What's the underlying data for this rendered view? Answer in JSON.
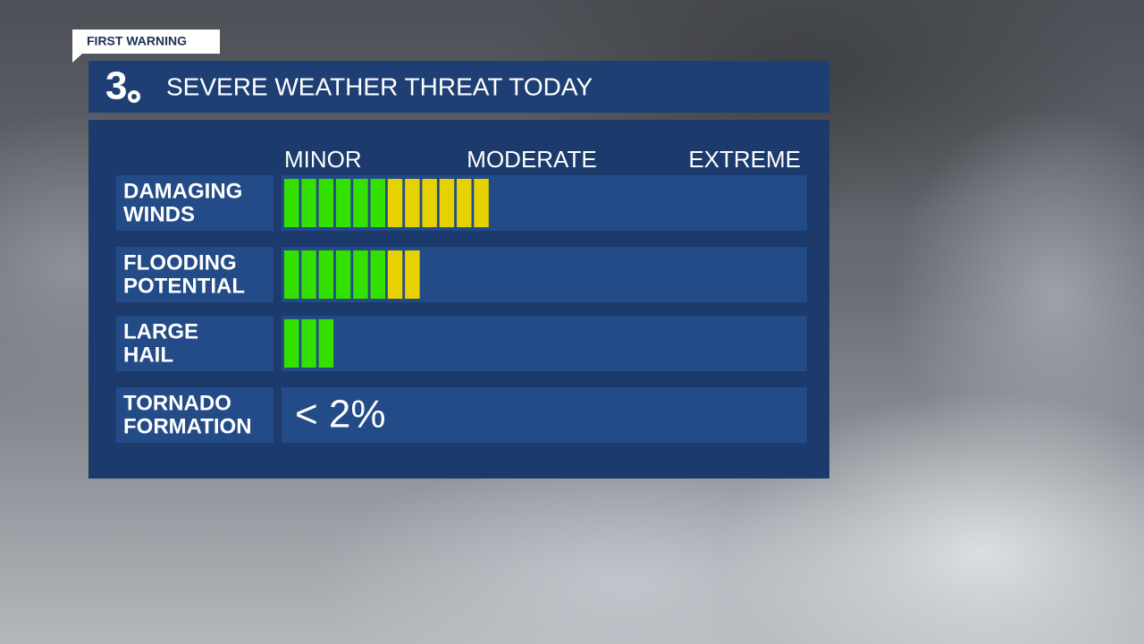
{
  "tag": "FIRST WARNING",
  "header": {
    "logo": "3",
    "title": "SEVERE WEATHER THREAT TODAY"
  },
  "scale": [
    "MINOR",
    "MODERATE",
    "EXTREME"
  ],
  "colors": {
    "green": "#33e000",
    "yellow": "#e6d200"
  },
  "rows": [
    {
      "label": [
        "DAMAGING",
        "WINDS"
      ],
      "green": 6,
      "yellow": 6
    },
    {
      "label": [
        "FLOODING",
        "POTENTIAL"
      ],
      "green": 6,
      "yellow": 2
    },
    {
      "label": [
        "LARGE",
        "HAIL"
      ],
      "green": 3,
      "yellow": 0
    },
    {
      "label": [
        "TORNADO",
        "FORMATION"
      ],
      "text": "< 2%"
    }
  ]
}
